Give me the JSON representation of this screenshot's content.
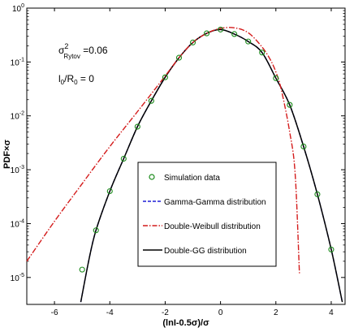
{
  "chart_data": {
    "type": "line",
    "xlabel": "(lnI-0.5σ)/σ",
    "ylabel": "PDF×σ",
    "xlim": [
      -7,
      4.5
    ],
    "ylim_log10": [
      -5.5,
      0
    ],
    "y_scale": "log",
    "x_ticks": [
      -6,
      -4,
      -2,
      0,
      2,
      4
    ],
    "x_tick_labels": [
      "-6",
      "-4",
      "-2",
      "0",
      "2",
      "4"
    ],
    "y_ticks": [
      {
        "base": "10",
        "exp": "0",
        "value": 1
      },
      {
        "base": "10",
        "exp": "-1",
        "value": 0.1
      },
      {
        "base": "10",
        "exp": "-2",
        "value": 0.01
      },
      {
        "base": "10",
        "exp": "-3",
        "value": 0.001
      },
      {
        "base": "10",
        "exp": "-4",
        "value": 0.0001
      },
      {
        "base": "10",
        "exp": "-5",
        "value": 1e-05
      }
    ],
    "annotations": {
      "sigma_line": {
        "base": "σ",
        "sup": "2",
        "sub": "Rytov",
        "tail": " =0.06"
      },
      "ratio_line": {
        "l": "l",
        "l_sub": "0",
        "slash": "/R",
        "r_sub": "0",
        "tail": " = 0"
      }
    },
    "legend": {
      "placement": "center-right",
      "entries": [
        {
          "label": "Simulation data",
          "color": "#1a8a1a",
          "style": "marker-circle"
        },
        {
          "label": "Gamma-Gamma distribution",
          "color": "#1f1fd6",
          "style": "dashed"
        },
        {
          "label": "Double-Weibull distribution",
          "color": "#d41b1b",
          "style": "dashdot"
        },
        {
          "label": "Double-GG distribution",
          "color": "#000000",
          "style": "solid"
        }
      ]
    },
    "series": [
      {
        "name": "Simulation data",
        "style": "markers",
        "color": "#1a8a1a",
        "x": [
          -5.0,
          -4.5,
          -4.0,
          -3.5,
          -3.0,
          -2.5,
          -2.0,
          -1.5,
          -1.0,
          -0.5,
          0.0,
          0.5,
          1.0,
          1.5,
          2.0,
          2.5,
          3.0,
          3.5,
          4.0
        ],
        "y": [
          1.4e-05,
          7.5e-05,
          0.0004,
          0.0016,
          0.0063,
          0.019,
          0.052,
          0.12,
          0.23,
          0.34,
          0.4,
          0.33,
          0.24,
          0.15,
          0.05,
          0.016,
          0.0027,
          0.00035,
          3.3e-05
        ]
      },
      {
        "name": "Double-GG distribution",
        "style": "solid",
        "color": "#000000",
        "x": [
          -5.05,
          -4.75,
          -4.5,
          -4.0,
          -3.5,
          -3.0,
          -2.5,
          -2.0,
          -1.5,
          -1.0,
          -0.5,
          0.0,
          0.5,
          1.0,
          1.5,
          2.0,
          2.5,
          3.0,
          3.5,
          4.0,
          4.4
        ],
        "y": [
          3.5e-06,
          2.2e-05,
          7.5e-05,
          0.0004,
          0.0016,
          0.0063,
          0.019,
          0.052,
          0.12,
          0.23,
          0.34,
          0.4,
          0.33,
          0.24,
          0.15,
          0.05,
          0.016,
          0.0027,
          0.00035,
          3.3e-05,
          3.5e-06
        ]
      },
      {
        "name": "Gamma-Gamma distribution",
        "style": "dashed",
        "color": "#1f1fd6",
        "x": [
          -5.05,
          -4.75,
          -4.5,
          -4.0,
          -3.5,
          -3.0,
          -2.5,
          -2.0,
          -1.5,
          -1.0,
          -0.5,
          0.0,
          0.5,
          1.0,
          1.5,
          2.0,
          2.5,
          3.0,
          3.5,
          4.0,
          4.4
        ],
        "y": [
          3.5e-06,
          2.2e-05,
          7.5e-05,
          0.0004,
          0.0016,
          0.0063,
          0.019,
          0.052,
          0.12,
          0.23,
          0.34,
          0.4,
          0.33,
          0.24,
          0.15,
          0.05,
          0.016,
          0.0027,
          0.00035,
          3.3e-05,
          3.5e-06
        ]
      },
      {
        "name": "Double-Weibull distribution",
        "style": "dashdot",
        "color": "#d41b1b",
        "x": [
          -7.0,
          -6.0,
          -5.0,
          -4.0,
          -3.0,
          -2.0,
          -1.5,
          -1.0,
          -0.5,
          0.0,
          0.5,
          1.0,
          1.5,
          1.8,
          2.0,
          2.2,
          2.5,
          2.7,
          2.85
        ],
        "y": [
          2e-05,
          0.00011,
          0.00055,
          0.0027,
          0.012,
          0.055,
          0.12,
          0.23,
          0.34,
          0.42,
          0.43,
          0.35,
          0.19,
          0.11,
          0.065,
          0.03,
          0.005,
          0.0008,
          1.2e-05
        ]
      }
    ]
  }
}
